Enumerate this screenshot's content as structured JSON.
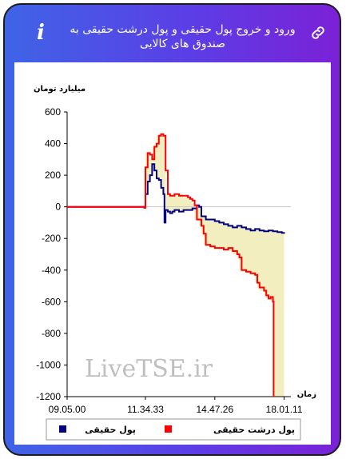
{
  "header": {
    "title": "ورود و خروج پول حقیقی و پول درشت حقیقی به صندوق های کالایی",
    "info_icon": "i"
  },
  "watermark": "LiveTSE.ir",
  "chart_data": {
    "type": "line",
    "ylabel": "میلیارد تومان",
    "xlabel": "زمان",
    "ylim": [
      -1200,
      600
    ],
    "yticks": [
      600,
      400,
      200,
      0,
      -200,
      -400,
      -600,
      -800,
      -1000,
      -1200
    ],
    "xlim": [
      0,
      100
    ],
    "xticks": [
      {
        "x": 0,
        "label": "09.05.00"
      },
      {
        "x": 35,
        "label": "11.34.33"
      },
      {
        "x": 66,
        "label": "14.47.26"
      },
      {
        "x": 97,
        "label": "18.01.11"
      }
    ],
    "fill_between_series": true,
    "fill_color": "#f3eec0",
    "series": [
      {
        "name": "پول حقیقی",
        "color": "#000080",
        "points": [
          [
            0,
            0
          ],
          [
            34,
            0
          ],
          [
            34.5,
            -5
          ],
          [
            35,
            80
          ],
          [
            36,
            160
          ],
          [
            37,
            200
          ],
          [
            38,
            270
          ],
          [
            39,
            230
          ],
          [
            40,
            180
          ],
          [
            41,
            170
          ],
          [
            42,
            120
          ],
          [
            43,
            80
          ],
          [
            43.5,
            -100
          ],
          [
            44,
            -20
          ],
          [
            45,
            -30
          ],
          [
            46,
            -40
          ],
          [
            47,
            -30
          ],
          [
            48,
            -20
          ],
          [
            50,
            -30
          ],
          [
            52,
            -20
          ],
          [
            54,
            -20
          ],
          [
            56,
            -10
          ],
          [
            58,
            10
          ],
          [
            59,
            0
          ],
          [
            60,
            -60
          ],
          [
            62,
            -80
          ],
          [
            64,
            -80
          ],
          [
            66,
            -90
          ],
          [
            68,
            -100
          ],
          [
            70,
            -110
          ],
          [
            72,
            -120
          ],
          [
            74,
            -130
          ],
          [
            76,
            -120
          ],
          [
            78,
            -130
          ],
          [
            80,
            -140
          ],
          [
            82,
            -150
          ],
          [
            84,
            -140
          ],
          [
            86,
            -150
          ],
          [
            88,
            -155
          ],
          [
            90,
            -150
          ],
          [
            92,
            -155
          ],
          [
            94,
            -160
          ],
          [
            96,
            -165
          ],
          [
            97,
            -170
          ]
        ]
      },
      {
        "name": "پول درشت حقیقی",
        "color": "#ff0000",
        "points": [
          [
            0,
            0
          ],
          [
            34,
            0
          ],
          [
            34.5,
            -5
          ],
          [
            35,
            250
          ],
          [
            36,
            340
          ],
          [
            37,
            330
          ],
          [
            38,
            300
          ],
          [
            39,
            380
          ],
          [
            40,
            400
          ],
          [
            41,
            450
          ],
          [
            42,
            460
          ],
          [
            43,
            450
          ],
          [
            44,
            230
          ],
          [
            45,
            80
          ],
          [
            46,
            70
          ],
          [
            48,
            80
          ],
          [
            50,
            70
          ],
          [
            52,
            70
          ],
          [
            54,
            60
          ],
          [
            55,
            50
          ],
          [
            56,
            40
          ],
          [
            57,
            10
          ],
          [
            58,
            -80
          ],
          [
            60,
            -120
          ],
          [
            61,
            -170
          ],
          [
            62,
            -240
          ],
          [
            64,
            -250
          ],
          [
            66,
            -260
          ],
          [
            68,
            -260
          ],
          [
            70,
            -270
          ],
          [
            72,
            -260
          ],
          [
            74,
            -280
          ],
          [
            76,
            -300
          ],
          [
            77,
            -320
          ],
          [
            78,
            -400
          ],
          [
            80,
            -410
          ],
          [
            82,
            -420
          ],
          [
            84,
            -430
          ],
          [
            85,
            -480
          ],
          [
            86,
            -510
          ],
          [
            88,
            -530
          ],
          [
            89,
            -560
          ],
          [
            90,
            -580
          ],
          [
            91,
            -570
          ],
          [
            92,
            -600
          ],
          [
            92.3,
            -1200
          ]
        ]
      }
    ],
    "legend": {
      "placement": "bottom",
      "entries": [
        "پول حقیقی",
        "پول درشت حقیقی"
      ]
    },
    "grid": false
  }
}
